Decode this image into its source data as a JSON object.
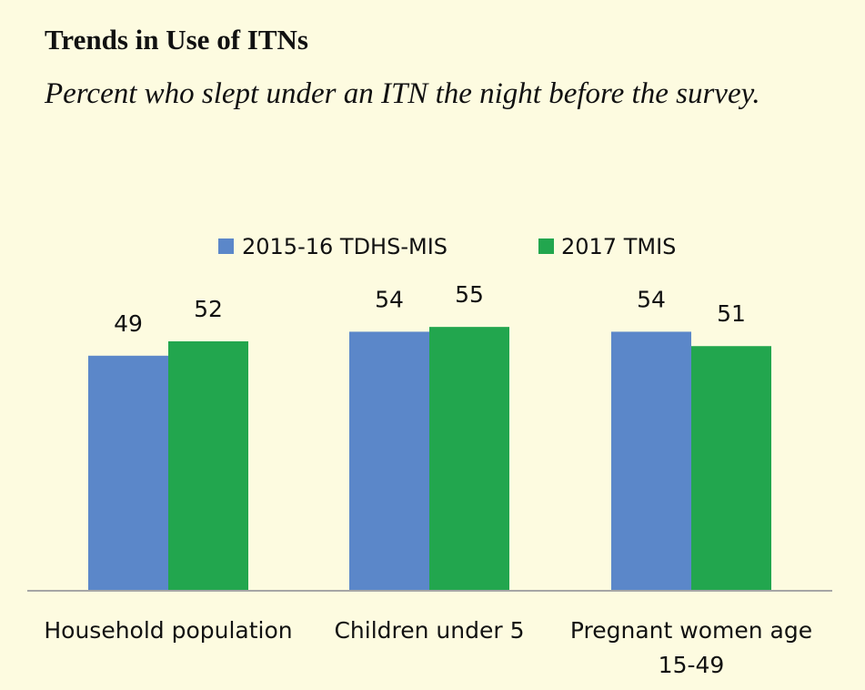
{
  "chart_data": {
    "type": "bar",
    "title": "Trends in Use of ITNs",
    "subtitle": "Percent who slept under an ITN the night before the survey.",
    "categories": [
      [
        "Household population"
      ],
      [
        "Children under 5"
      ],
      [
        "Pregnant women age",
        "15-49"
      ]
    ],
    "series": [
      {
        "name": "2015-16 TDHS-MIS",
        "values": [
          49,
          54,
          54
        ],
        "color": "#5b87c9"
      },
      {
        "name": "2017 TMIS",
        "values": [
          52,
          55,
          51
        ],
        "color": "#22a64e"
      }
    ],
    "ylim": [
      0,
      100
    ],
    "legend": "top",
    "grid": false,
    "data_labels": true
  }
}
